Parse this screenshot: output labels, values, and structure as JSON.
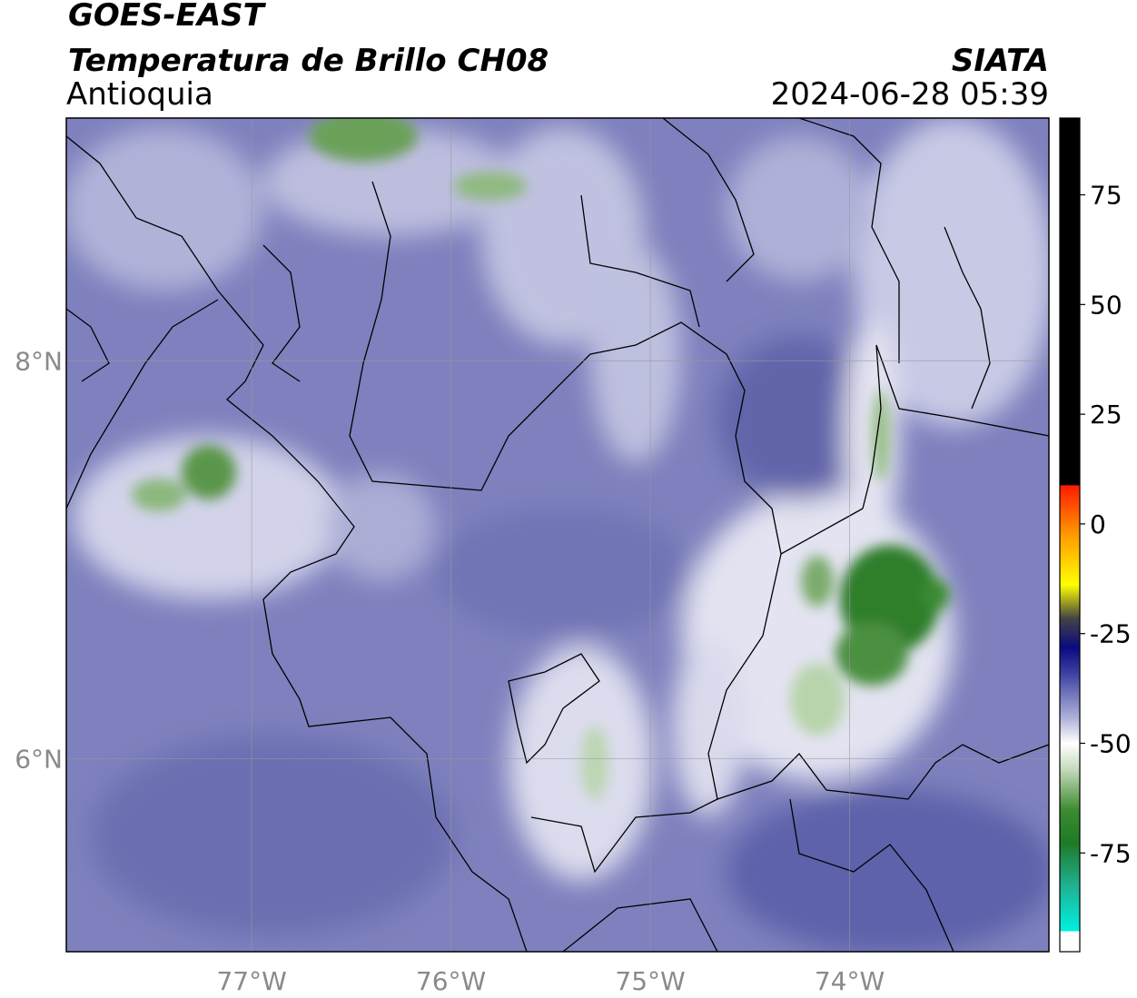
{
  "header": {
    "title": "GOES-EAST",
    "subtitle": "Temperatura de Brillo CH08",
    "region": "Antioquia",
    "source": "SIATA",
    "datetime": "2024-06-28 05:39"
  },
  "map": {
    "xlim": [
      -77.93,
      -73.0
    ],
    "ylim": [
      5.03,
      9.22
    ],
    "xticks": [
      {
        "value": -77,
        "label": "77°W"
      },
      {
        "value": -76,
        "label": "76°W"
      },
      {
        "value": -75,
        "label": "75°W"
      },
      {
        "value": -74,
        "label": "74°W"
      }
    ],
    "yticks": [
      {
        "value": 6,
        "label": "6°N"
      },
      {
        "value": 8,
        "label": "8°N"
      }
    ],
    "grid": true
  },
  "colorbar": {
    "clim": [
      -97.5,
      92.5
    ],
    "ticks": [
      -75,
      -50,
      -25,
      0,
      25,
      50,
      75
    ]
  }
}
